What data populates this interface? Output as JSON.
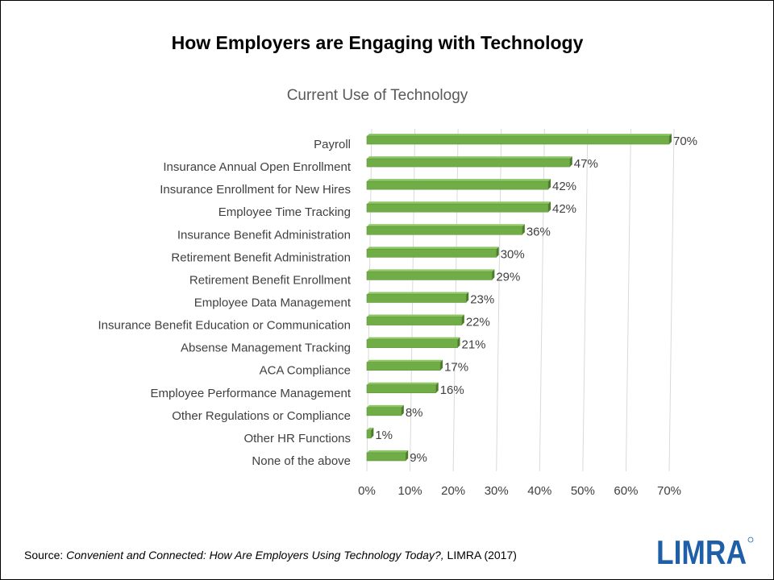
{
  "header": {
    "title": "How Employers are Engaging with Technology"
  },
  "chart_data": {
    "type": "bar",
    "orientation": "horizontal",
    "title": "Current Use of Technology",
    "categories": [
      "Payroll",
      "Insurance Annual Open Enrollment",
      "Insurance Enrollment for New Hires",
      "Employee Time Tracking",
      "Insurance Benefit Administration",
      "Retirement Benefit Administration",
      "Retirement Benefit Enrollment",
      "Employee Data Management",
      "Insurance Benefit Education or Communication",
      "Absense Management Tracking",
      "ACA Compliance",
      "Employee Performance Management",
      "Other Regulations or Compliance",
      "Other HR Functions",
      "None of the above"
    ],
    "values": [
      70,
      47,
      42,
      42,
      36,
      30,
      29,
      23,
      22,
      21,
      17,
      16,
      8,
      1,
      9
    ],
    "data_labels": [
      "70%",
      "47%",
      "42%",
      "42%",
      "36%",
      "30%",
      "29%",
      "23%",
      "22%",
      "21%",
      "17%",
      "16%",
      "8%",
      "1%",
      "9%"
    ],
    "x_ticks": [
      0,
      10,
      20,
      30,
      40,
      50,
      60,
      70
    ],
    "x_tick_labels": [
      "0%",
      "10%",
      "20%",
      "30%",
      "40%",
      "50%",
      "60%",
      "70%"
    ],
    "xlim": [
      0,
      70
    ],
    "xlabel": "",
    "ylabel": "",
    "grid": true,
    "bar_color": "#70AD47",
    "bar_dark_color": "#4E7A2E",
    "grid_color": "#D9D9D9",
    "label_color": "#404040"
  },
  "footer": {
    "source_prefix": "Source: ",
    "source_italic": "Convenient and Connected: How Are Employers Using Technology Today?,",
    "source_suffix": " LIMRA (2017)"
  },
  "logo": {
    "text": "LIMRA",
    "color": "#1F5FA8"
  }
}
